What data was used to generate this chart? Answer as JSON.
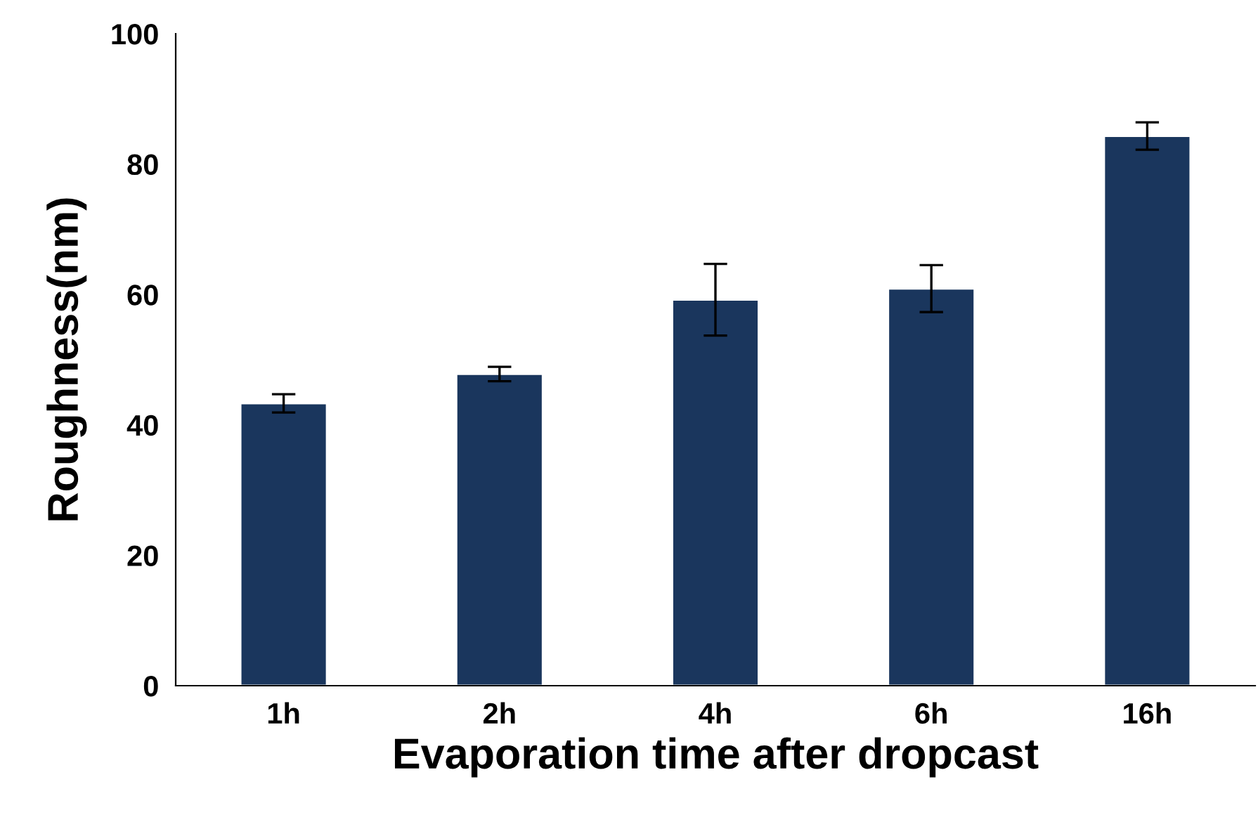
{
  "chart_data": {
    "type": "bar",
    "xlabel": "Evaporation time after dropcast",
    "ylabel": "Roughness(nm)",
    "categories": [
      "1h",
      "2h",
      "4h",
      "6h",
      "16h"
    ],
    "values": [
      43.3,
      47.8,
      59.2,
      60.9,
      84.3
    ],
    "errors": [
      1.4,
      1.1,
      5.5,
      3.6,
      2.1
    ],
    "color": "#1a365d",
    "ylim": [
      0,
      100
    ],
    "yticks": [
      0,
      20,
      40,
      60,
      80,
      100
    ],
    "grid": false
  }
}
